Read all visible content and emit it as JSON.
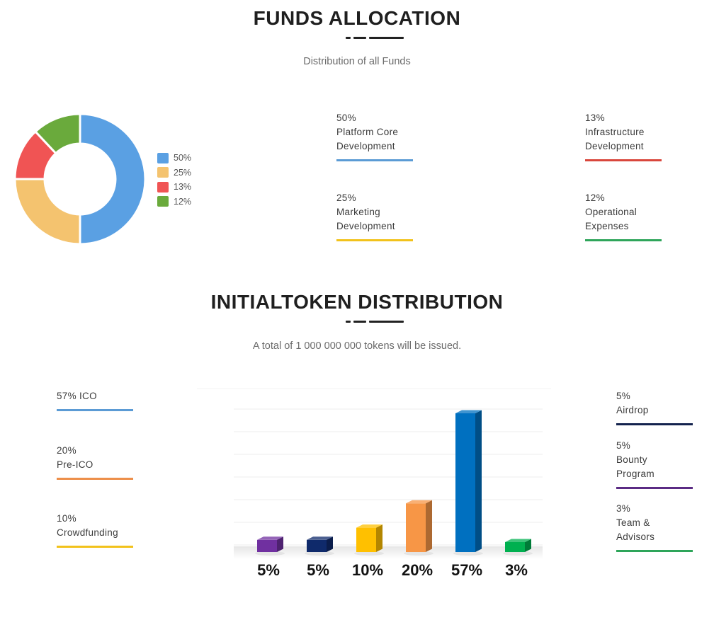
{
  "funds": {
    "title": "FUNDS ALLOCATION",
    "subtitle": "Distribution of all Funds",
    "chart_data": {
      "type": "pie",
      "style": "donut",
      "slices": [
        {
          "value": 50,
          "label": "50%",
          "color": "#5aa0e3"
        },
        {
          "value": 25,
          "label": "25%",
          "color": "#f4c36f"
        },
        {
          "value": 13,
          "label": "13%",
          "color": "#f05454"
        },
        {
          "value": 12,
          "label": "12%",
          "color": "#6aaa3c"
        }
      ]
    },
    "cards": [
      {
        "pct": "50%",
        "label": "Platform Core\nDevelopment",
        "color": "#5b9bd5"
      },
      {
        "pct": "13%",
        "label": "Infrastructure\nDevelopment",
        "color": "#d9463c"
      },
      {
        "pct": "25%",
        "label": "Marketing\nDevelopment",
        "color": "#f2c21b"
      },
      {
        "pct": "12%",
        "label": "Operational\nExpenses",
        "color": "#2ea55a"
      }
    ]
  },
  "tokens": {
    "title": "INITIALTOKEN DISTRIBUTION",
    "subtitle": "A total of 1 000 000 000 tokens will be issued.",
    "left_cards": [
      {
        "text": "57% ICO",
        "color": "#5b9bd5"
      },
      {
        "text": "20%\nPre-ICO",
        "color": "#ed8f4a"
      },
      {
        "text": "10%\nCrowdfunding",
        "color": "#f2c21b"
      }
    ],
    "right_cards": [
      {
        "text": "5%\nAirdrop",
        "color": "#13224d"
      },
      {
        "text": "5%\nBounty\nProgram",
        "color": "#5b2b84"
      },
      {
        "text": "3%\nTeam &\nAdvisors",
        "color": "#2ea55a"
      }
    ],
    "chart_data": {
      "type": "bar",
      "categories": [
        "5%",
        "5%",
        "10%",
        "20%",
        "57%",
        "3%"
      ],
      "values": [
        5,
        5,
        10,
        20,
        57,
        3
      ],
      "colors": [
        "#7030a0",
        "#0f2a6b",
        "#ffc000",
        "#f79646",
        "#0070c0",
        "#00b050"
      ],
      "ylim": [
        0,
        57
      ],
      "grid": true
    }
  }
}
